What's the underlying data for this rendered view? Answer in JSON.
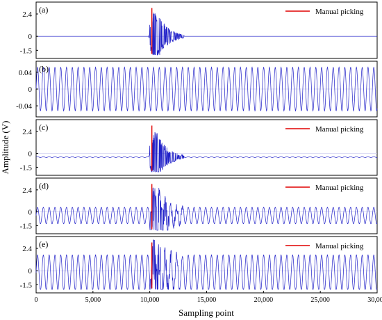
{
  "figure": {
    "ylabel": "Amplitude (V)",
    "xlabel": "Sampling point",
    "xticks": [
      "0",
      "5,000",
      "10,000",
      "15,000",
      "20,000",
      "25,000",
      "30,000"
    ]
  },
  "chart_data": [
    {
      "type": "line",
      "panel_label": "(a)",
      "xlim": [
        0,
        30000
      ],
      "ylim": [
        -2.0,
        3.3
      ],
      "yticks": [
        2.4,
        0,
        -1.5
      ],
      "ytick_labels": [
        "2.4",
        "0",
        "-1.5"
      ],
      "legend": {
        "label": "Manual picking",
        "position": "top-right"
      },
      "manual_picking_x": 10000,
      "signal": {
        "noise_amplitude": 0,
        "noise_period": 510,
        "onset": 10000,
        "burst_peak": 3.2,
        "burst_decay_points": 900,
        "burst_end": 13000
      },
      "series": [
        {
          "name": "Manual picking",
          "color": "#e00000"
        }
      ]
    },
    {
      "type": "line",
      "panel_label": "(b)",
      "xlim": [
        0,
        30000
      ],
      "ylim": [
        -0.058,
        0.058
      ],
      "yticks": [
        0.04,
        0,
        -0.04
      ],
      "ytick_labels": [
        "0.04",
        "0",
        "-0.04"
      ],
      "signal": {
        "noise_amplitude": 0.052,
        "noise_period": 510
      }
    },
    {
      "type": "line",
      "panel_label": "(c)",
      "xlim": [
        0,
        30000
      ],
      "ylim": [
        -2.0,
        3.3
      ],
      "yticks": [
        2.4,
        0,
        -1.5
      ],
      "ytick_labels": [
        "2.4",
        "0",
        "-1.5"
      ],
      "legend": {
        "label": "Manual picking",
        "position": "top-right"
      },
      "manual_picking_x": 10000,
      "signal": {
        "noise_amplitude": 0.04,
        "noise_period": 510,
        "offset": -0.4,
        "onset": 10000,
        "burst_peak": 3.2,
        "burst_decay_points": 900,
        "burst_end": 13000
      },
      "series": [
        {
          "name": "Manual picking",
          "color": "#e00000"
        }
      ]
    },
    {
      "type": "line",
      "panel_label": "(d)",
      "xlim": [
        0,
        30000
      ],
      "ylim": [
        -2.0,
        3.3
      ],
      "yticks": [
        2.4,
        0,
        -1.5
      ],
      "ytick_labels": [
        "2.4",
        "0",
        "-1.5"
      ],
      "legend": {
        "label": "Manual picking",
        "position": "top-right"
      },
      "manual_picking_x": 10000,
      "signal": {
        "noise_amplitude": 0.9,
        "noise_period": 510,
        "offset": -0.4,
        "onset": 10000,
        "burst_peak": 3.2,
        "burst_decay_points": 900,
        "burst_end": 13000
      },
      "series": [
        {
          "name": "Manual picking",
          "color": "#e00000"
        }
      ]
    },
    {
      "type": "line",
      "panel_label": "(e)",
      "xlim": [
        0,
        30000
      ],
      "ylim": [
        -2.0,
        3.3
      ],
      "yticks": [
        2.4,
        0,
        -1.5
      ],
      "ytick_labels": [
        "2.4",
        "0",
        "-1.5"
      ],
      "legend": {
        "label": "Manual picking",
        "position": "top-right"
      },
      "manual_picking_x": 10000,
      "signal": {
        "noise_amplitude": 1.9,
        "noise_period": 510,
        "offset": -0.2,
        "onset": 10000,
        "burst_peak": 3.2,
        "burst_decay_points": 900,
        "burst_end": 13000
      },
      "series": [
        {
          "name": "Manual picking",
          "color": "#e00000"
        }
      ]
    }
  ],
  "colors": {
    "signal": "#2020c8",
    "picking": "#e00000",
    "frame": "#000000"
  }
}
